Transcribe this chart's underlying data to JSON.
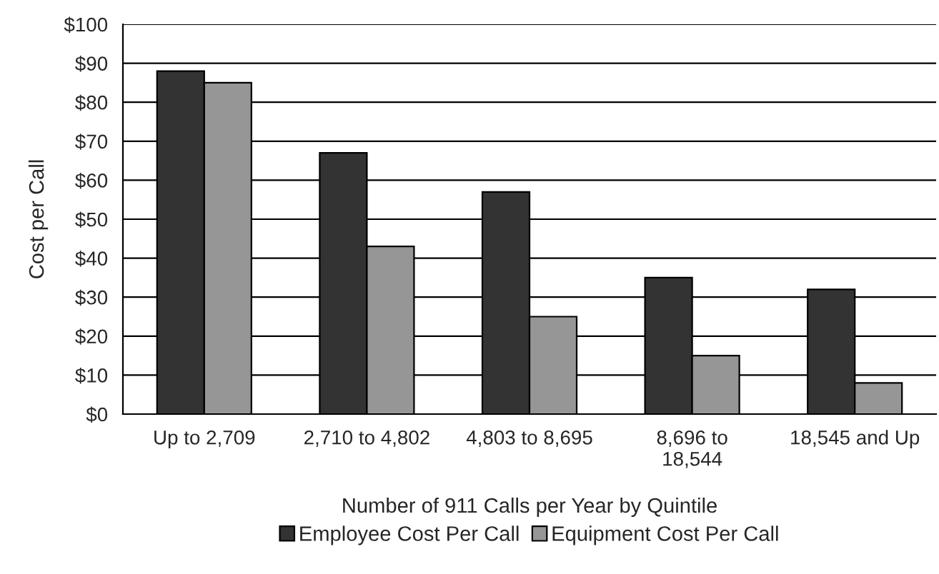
{
  "chart_data": {
    "type": "bar",
    "xlabel": "Number of 911 Calls per Year by Quintile",
    "ylabel": "Cost per Call",
    "categories": [
      "Up to 2,709",
      "2,710 to 4,802",
      "4,803 to 8,695",
      "8,696 to\n18,544",
      "18,545 and Up"
    ],
    "series": [
      {
        "name": "Employee Cost Per Call",
        "color": "#333333",
        "values": [
          88,
          67,
          57,
          35,
          32
        ]
      },
      {
        "name": "Equipment Cost Per Call",
        "color": "#969696",
        "values": [
          85,
          43,
          25,
          15,
          8
        ]
      }
    ],
    "ylim": [
      0,
      100
    ],
    "yticks": [
      {
        "value": 0,
        "label": "$0"
      },
      {
        "value": 10,
        "label": "$10"
      },
      {
        "value": 20,
        "label": "$20"
      },
      {
        "value": 30,
        "label": "$30"
      },
      {
        "value": 40,
        "label": "$40"
      },
      {
        "value": 50,
        "label": "$50"
      },
      {
        "value": 60,
        "label": "$60"
      },
      {
        "value": 70,
        "label": "$70"
      },
      {
        "value": 80,
        "label": "$80"
      },
      {
        "value": 90,
        "label": "$90"
      },
      {
        "value": 100,
        "label": "$100"
      }
    ],
    "grid": "y",
    "legend": "bottom"
  }
}
